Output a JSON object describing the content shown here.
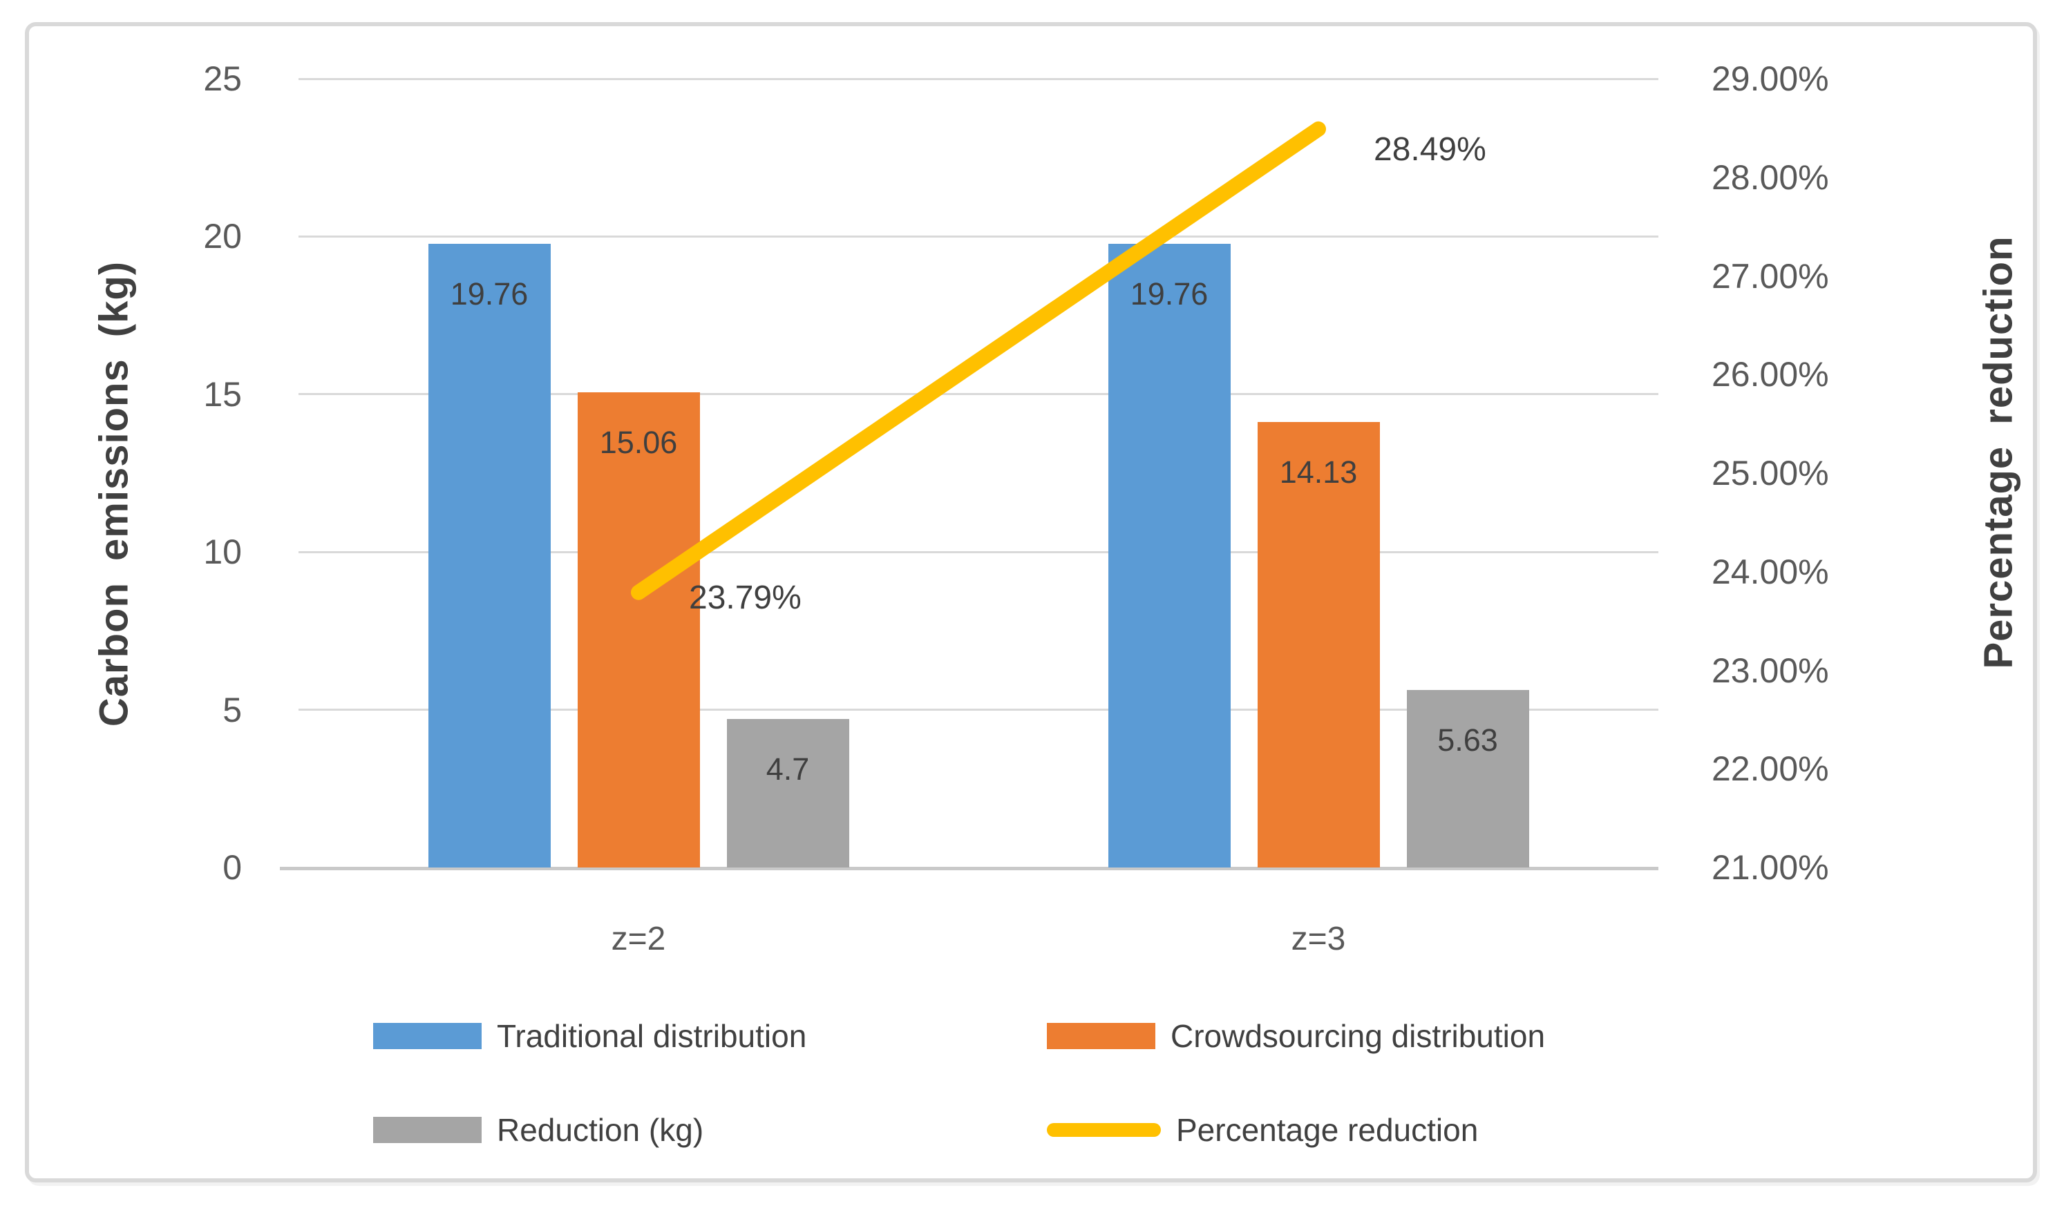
{
  "chart_data": {
    "type": "combo",
    "title": "",
    "categories": [
      "z=2",
      "z=3"
    ],
    "series": [
      {
        "name": "Traditional distribution",
        "type": "bar",
        "axis": "left",
        "color": "#5B9BD5",
        "values": [
          19.76,
          19.76
        ],
        "data_labels": [
          "19.76",
          "19.76"
        ]
      },
      {
        "name": "Crowdsourcing distribution",
        "type": "bar",
        "axis": "left",
        "color": "#ED7D31",
        "values": [
          15.06,
          14.13
        ],
        "data_labels": [
          "15.06",
          "14.13"
        ]
      },
      {
        "name": "Reduction (kg)",
        "type": "bar",
        "axis": "left",
        "color": "#A5A5A5",
        "values": [
          4.7,
          5.63
        ],
        "data_labels": [
          "4.7",
          "5.63"
        ]
      },
      {
        "name": "Percentage reduction",
        "type": "line",
        "axis": "right",
        "color": "#FFC000",
        "values": [
          23.79,
          28.49
        ],
        "data_labels": [
          "23.79%",
          "28.49%"
        ]
      }
    ],
    "left_axis": {
      "title": "Carbon emissions (kg)",
      "min": 0,
      "max": 25,
      "tick_values": [
        0,
        5,
        10,
        15,
        20,
        25
      ],
      "tick_labels": [
        "0",
        "5",
        "10",
        "15",
        "20",
        "25"
      ]
    },
    "right_axis": {
      "title": "Percentage  reduction",
      "min": 21,
      "max": 29,
      "tick_values": [
        21,
        22,
        23,
        24,
        25,
        26,
        27,
        28,
        29
      ],
      "tick_labels": [
        "21.00%",
        "22.00%",
        "23.00%",
        "24.00%",
        "25.00%",
        "26.00%",
        "27.00%",
        "28.00%",
        "29.00%"
      ]
    },
    "grid": true,
    "legend_position": "bottom",
    "legend": [
      {
        "label": "Traditional distribution",
        "marker": "bar",
        "color": "#5B9BD5"
      },
      {
        "label": "Crowdsourcing distribution",
        "marker": "bar",
        "color": "#ED7D31"
      },
      {
        "label": "Reduction (kg)",
        "marker": "bar",
        "color": "#A5A5A5"
      },
      {
        "label": "Percentage reduction",
        "marker": "line",
        "color": "#FFC000"
      }
    ],
    "colors": {
      "gridline": "#D9D9D9",
      "axis_text": "#595959",
      "data_label": "#3F3F3F",
      "frame_border": "#D9D9D9",
      "background": "#FFFFFF"
    }
  }
}
